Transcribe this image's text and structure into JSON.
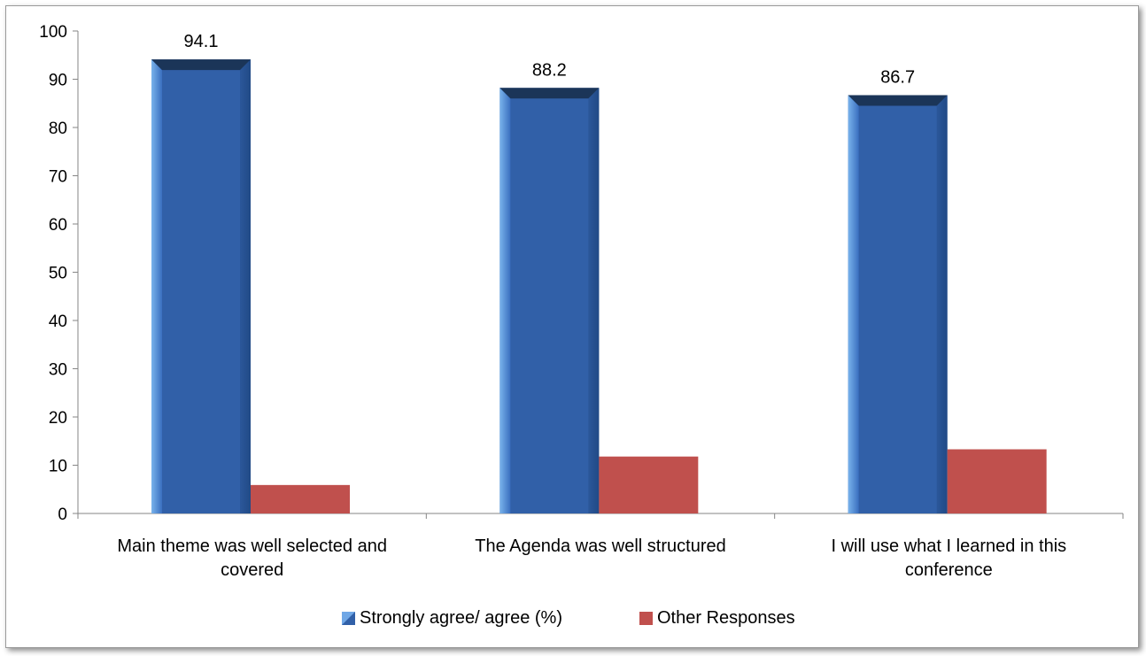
{
  "chart_data": {
    "type": "bar",
    "categories": [
      [
        "Main theme was well selected and",
        "covered"
      ],
      [
        "The Agenda was well structured"
      ],
      [
        "I will use what I learned in this",
        "conference"
      ]
    ],
    "series": [
      {
        "name": "Strongly agree/ agree (%)",
        "values": [
          94.1,
          88.2,
          86.7
        ],
        "color": "#3160a8",
        "data_labels": [
          "94.1",
          "88.2",
          "86.7"
        ]
      },
      {
        "name": "Other Responses",
        "values": [
          5.9,
          11.8,
          13.3
        ],
        "color": "#c0504d"
      }
    ],
    "ylim": [
      0,
      100
    ],
    "yticks": [
      0,
      10,
      20,
      30,
      40,
      50,
      60,
      70,
      80,
      90,
      100
    ],
    "grid": false,
    "legend_position": "bottom"
  }
}
